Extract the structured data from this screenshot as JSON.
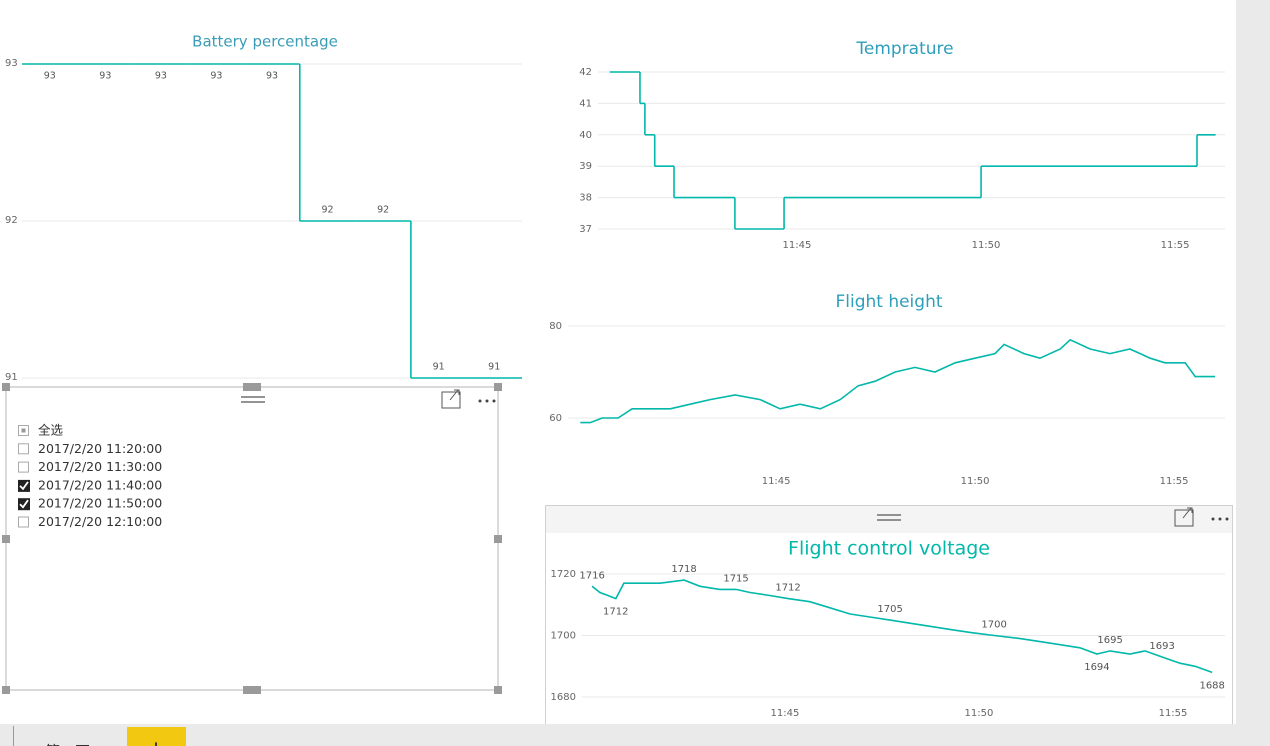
{
  "chart_data": [
    {
      "type": "line",
      "steps": true,
      "data_labels": true,
      "title": "Battery percentage",
      "categories": [
        null,
        null,
        null,
        null,
        null,
        null,
        null,
        null,
        null
      ],
      "values": [
        93,
        93,
        93,
        93,
        93,
        92,
        92,
        91,
        91
      ],
      "color": "#01b8aa",
      "ylim": [
        91,
        93
      ],
      "yticks": [
        91,
        92,
        93
      ],
      "grid": true
    },
    {
      "type": "line",
      "steps": true,
      "title": "Temprature",
      "x": [
        700.05,
        700.85,
        700.98,
        701.24,
        701.75,
        703.36,
        704.66,
        709.87,
        715.58,
        716.06
      ],
      "values": [
        42,
        41,
        40,
        39,
        38,
        37,
        38,
        39,
        40,
        40
      ],
      "color": "#01b8aa",
      "xlim": [
        699.74,
        716.32
      ],
      "xticks": [
        {
          "value": 705,
          "label": "11:45"
        },
        {
          "value": 710,
          "label": "11:50"
        },
        {
          "value": 715,
          "label": "11:55"
        }
      ],
      "ylim": [
        37,
        42
      ],
      "yticks": [
        37,
        38,
        39,
        40,
        41,
        42
      ],
      "grid": true
    },
    {
      "type": "line",
      "title": "Flight height",
      "x": [
        700.08,
        700.33,
        700.63,
        701.03,
        701.38,
        701.83,
        702.34,
        702.84,
        703.34,
        703.97,
        704.6,
        705.1,
        705.6,
        706.11,
        706.61,
        707.06,
        707.49,
        707.99,
        708.49,
        708.99,
        709.5,
        710.0,
        710.5,
        710.73,
        711.23,
        711.63,
        712.14,
        712.39,
        712.89,
        713.39,
        713.89,
        714.4,
        714.77,
        715.28,
        715.53,
        716.03
      ],
      "values": [
        59,
        59,
        60,
        60,
        62,
        62,
        62,
        63,
        64,
        65,
        64,
        62,
        63,
        62,
        64,
        67,
        68,
        70,
        71,
        70,
        72,
        73,
        74,
        76,
        74,
        73,
        75,
        77,
        75,
        74,
        75,
        73,
        72,
        72,
        69,
        69
      ],
      "color": "#01b8aa",
      "xlim": [
        699.77,
        716.28
      ],
      "xticks": [
        {
          "value": 705,
          "label": "11:45"
        },
        {
          "value": 710,
          "label": "11:50"
        },
        {
          "value": 715,
          "label": "11:55"
        }
      ],
      "ylim": [
        50,
        80
      ],
      "yticks": [
        60,
        80
      ],
      "grid": true
    },
    {
      "type": "line",
      "title": "Flight control voltage",
      "x": [
        700.03,
        700.23,
        700.44,
        700.64,
        700.85,
        701.26,
        701.78,
        702.4,
        702.81,
        703.32,
        703.74,
        704.1,
        704.61,
        705.08,
        705.64,
        706.16,
        706.68,
        707.19,
        707.71,
        708.22,
        708.74,
        709.25,
        709.77,
        710.39,
        711.06,
        711.57,
        712.09,
        712.6,
        713.04,
        713.38,
        713.89,
        714.28,
        714.72,
        715.18,
        715.57,
        716.01
      ],
      "values": [
        1716,
        1714,
        1713,
        1712,
        1717,
        1717,
        1717,
        1718,
        1716,
        1715,
        1715,
        1714,
        1713,
        1712,
        1711,
        1709,
        1707,
        1706,
        1705,
        1704,
        1703,
        1702,
        1701,
        1700,
        1699,
        1698,
        1697,
        1696,
        1694,
        1695,
        1694,
        1695,
        1693,
        1691,
        1690,
        1688
      ],
      "value_labels": [
        "1716",
        null,
        null,
        "1712",
        null,
        null,
        null,
        "1718",
        null,
        null,
        "1715",
        null,
        null,
        "1712",
        null,
        null,
        null,
        null,
        "1705",
        null,
        null,
        null,
        null,
        "1700",
        null,
        null,
        null,
        null,
        "1694",
        "1695",
        null,
        null,
        "1693",
        null,
        null,
        "1688"
      ],
      "color": "#01b8aa",
      "xlim": [
        699.77,
        716.34
      ],
      "xticks": [
        {
          "value": 705,
          "label": "11:45"
        },
        {
          "value": 710,
          "label": "11:50"
        },
        {
          "value": 715,
          "label": "11:55"
        }
      ],
      "ylim": [
        1680,
        1720
      ],
      "yticks": [
        1680,
        1700,
        1720
      ],
      "grid": true
    }
  ],
  "slicer": {
    "items": [
      {
        "label": "全选",
        "state": "partial"
      },
      {
        "label": "2017/2/20 11:20:00",
        "state": "unchecked"
      },
      {
        "label": "2017/2/20 11:30:00",
        "state": "unchecked"
      },
      {
        "label": "2017/2/20 11:40:00",
        "state": "checked"
      },
      {
        "label": "2017/2/20 11:50:00",
        "state": "checked"
      },
      {
        "label": "2017/2/20 12:10:00",
        "state": "unchecked"
      }
    ]
  },
  "tabs": [
    "第一页",
    "+"
  ]
}
